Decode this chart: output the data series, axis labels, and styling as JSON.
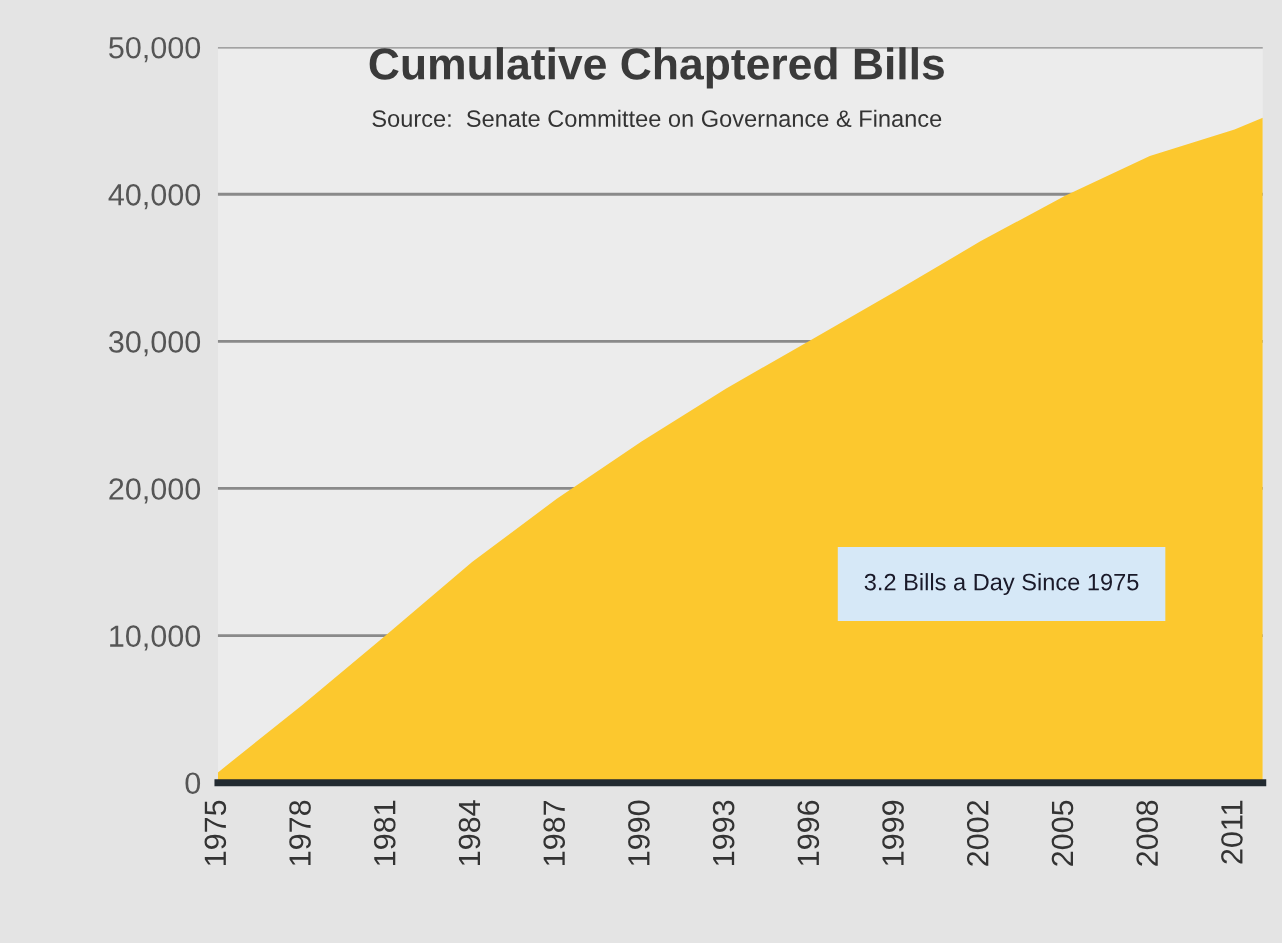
{
  "chart_data": {
    "type": "area",
    "title": "Cumulative Chaptered Bills",
    "subtitle": "Source:  Senate Committee on Governance & Finance",
    "x": [
      1975,
      1978,
      1981,
      1984,
      1987,
      1990,
      1993,
      1996,
      1999,
      2002,
      2005,
      2008,
      2011,
      2012
    ],
    "series": [
      {
        "color": "#fcc82e",
        "values": [
          700,
          5300,
          10100,
          15000,
          19300,
          23200,
          26800,
          30100,
          33400,
          36800,
          39900,
          42600,
          44400,
          45200
        ]
      }
    ],
    "xlim": [
      1975,
      2012
    ],
    "xticks": [
      1975,
      1978,
      1981,
      1984,
      1987,
      1990,
      1993,
      1996,
      1999,
      2002,
      2005,
      2008,
      2011
    ],
    "ylim": [
      0,
      50000
    ],
    "yticks": [
      {
        "value": 0,
        "label": "0"
      },
      {
        "value": 10000,
        "label": "10,000"
      },
      {
        "value": 20000,
        "label": "20,000"
      },
      {
        "value": 30000,
        "label": "30,000"
      },
      {
        "value": 40000,
        "label": "40,000"
      },
      {
        "value": 50000,
        "label": "50,000"
      }
    ],
    "grid": "y",
    "annotations": [
      "3.2 Bills a Day Since 1975"
    ]
  }
}
